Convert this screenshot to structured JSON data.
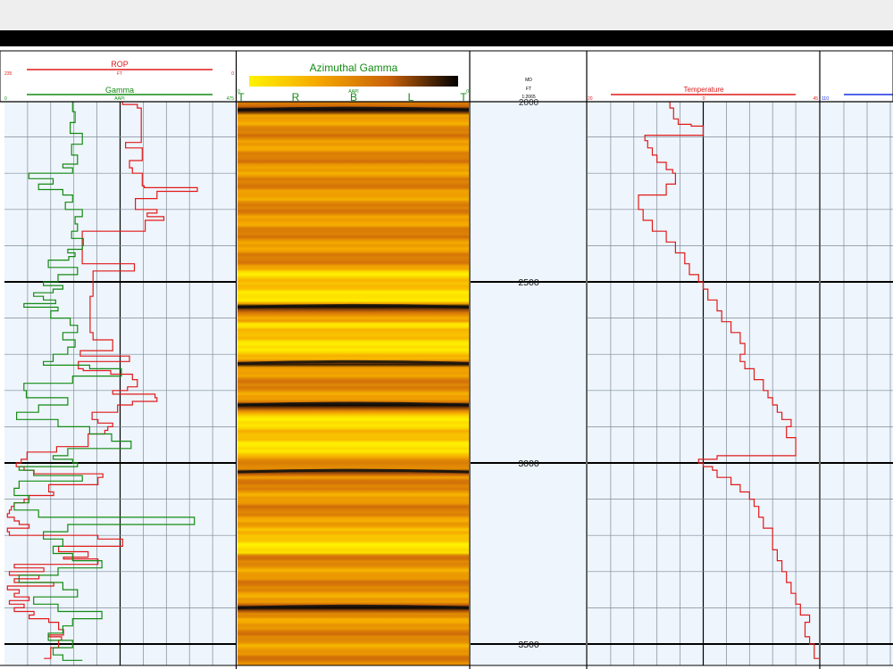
{
  "window": {
    "title": ""
  },
  "tracks": {
    "track1": {
      "rop": {
        "label": "ROP",
        "unit": "FT",
        "scale_left": "235",
        "scale_right": "0",
        "color": "#e01a1a"
      },
      "gamma": {
        "label": "Gamma",
        "unit": "AAPI",
        "scale_left": "0",
        "scale_right": "475",
        "color": "#138a13"
      }
    },
    "image": {
      "title": "Azimuthal Gamma",
      "unit": "AAPI",
      "scale_left": "0",
      "scale_right": "0",
      "orientation_labels": [
        "T",
        "R",
        "B",
        "L",
        "T"
      ],
      "title_color": "#138a13",
      "colormap": [
        "#fff200",
        "#f5a800",
        "#c8620a",
        "#000000"
      ]
    },
    "depth": {
      "label": "MD",
      "unit": "FT",
      "scale": "1:2065",
      "top_partial": "2000",
      "depth_labels": [
        "2500",
        "3000",
        "3500"
      ]
    },
    "temperature": {
      "label": "Temperature",
      "scale_left": "20",
      "scale_right": "45",
      "scale_mid": "0",
      "color": "#e01a1a"
    },
    "track5": {
      "scale_left": "110",
      "color": "#1a2fe0"
    }
  },
  "chart_data": {
    "type": "line",
    "title": "",
    "ylabel": "MD",
    "y_unit": "FT",
    "ylim": [
      1995,
      3565
    ],
    "series": [
      {
        "name": "ROP",
        "track": "track1",
        "xlim": [
          235,
          0
        ],
        "depth": [
          2000,
          2010,
          2020,
          2090,
          2115,
          2130,
          2150,
          2165,
          2185,
          2200,
          2225,
          2235,
          2240,
          2250,
          2265,
          2270,
          2290,
          2300,
          2310,
          2320,
          2330,
          2360,
          2450,
          2470,
          2540,
          2640,
          2660,
          2690,
          2705,
          2720,
          2740,
          2745,
          2755,
          2770,
          2790,
          2800,
          2810,
          2820,
          2830,
          2840,
          2860,
          2880,
          2890,
          2900,
          2910,
          2920,
          2940,
          2955,
          2970,
          2980,
          2990,
          3000,
          3010,
          3020,
          3030,
          3040,
          3060,
          3080,
          3090,
          3100,
          3110,
          3120,
          3130,
          3140,
          3150,
          3160,
          3170,
          3180,
          3190,
          3200,
          3210,
          3230,
          3245,
          3260,
          3265,
          3280,
          3290,
          3300,
          3310,
          3320,
          3330,
          3340,
          3350,
          3360,
          3370,
          3380,
          3390,
          3400,
          3410,
          3420,
          3430,
          3440,
          3460,
          3475,
          3480,
          3490,
          3510,
          3540
        ],
        "values": [
          115,
          100,
          96,
          96,
          112,
          95,
          95,
          108,
          105,
          95,
          95,
          93,
          39,
          80,
          80,
          102,
          102,
          80,
          90,
          73,
          92,
          156,
          103,
          145,
          148,
          145,
          125,
          158,
          108,
          160,
          155,
          127,
          105,
          100,
          110,
          125,
          82,
          80,
          105,
          120,
          146,
          140,
          125,
          130,
          133,
          150,
          150,
          182,
          212,
          212,
          218,
          223,
          215,
          205,
          135,
          140,
          190,
          185,
          210,
          215,
          225,
          228,
          230,
          232,
          225,
          220,
          210,
          232,
          230,
          140,
          115,
          180,
          150,
          175,
          140,
          225,
          195,
          230,
          200,
          225,
          185,
          232,
          220,
          225,
          210,
          230,
          215,
          225,
          205,
          210,
          190,
          180,
          175,
          190,
          177,
          180,
          188,
          195
        ]
      },
      {
        "name": "Gamma",
        "track": "track1",
        "xlim": [
          0,
          475
        ],
        "depth": [
          2000,
          2030,
          2060,
          2090,
          2120,
          2150,
          2175,
          2185,
          2200,
          2215,
          2230,
          2245,
          2260,
          2280,
          2300,
          2320,
          2340,
          2360,
          2380,
          2400,
          2410,
          2420,
          2430,
          2440,
          2460,
          2480,
          2500,
          2510,
          2520,
          2530,
          2540,
          2550,
          2560,
          2570,
          2580,
          2600,
          2620,
          2640,
          2660,
          2680,
          2700,
          2720,
          2730,
          2740,
          2760,
          2780,
          2800,
          2820,
          2840,
          2860,
          2880,
          2900,
          2920,
          2940,
          2960,
          2980,
          2990,
          3000,
          3010,
          3020,
          3035,
          3050,
          3070,
          3090,
          3110,
          3130,
          3150,
          3170,
          3190,
          3210,
          3230,
          3250,
          3270,
          3290,
          3310,
          3330,
          3350,
          3370,
          3390,
          3410,
          3430,
          3450,
          3470,
          3490,
          3510,
          3530,
          3545
        ],
        "values": [
          140,
          145,
          135,
          160,
          138,
          150,
          120,
          140,
          50,
          100,
          70,
          120,
          140,
          125,
          160,
          145,
          150,
          138,
          162,
          160,
          130,
          145,
          132,
          90,
          150,
          110,
          80,
          120,
          100,
          60,
          80,
          105,
          40,
          110,
          95,
          135,
          150,
          120,
          145,
          130,
          100,
          80,
          175,
          240,
          140,
          40,
          45,
          130,
          70,
          25,
          110,
          175,
          220,
          260,
          130,
          100,
          140,
          150,
          30,
          60,
          160,
          30,
          20,
          50,
          20,
          70,
          390,
          130,
          80,
          120,
          100,
          140,
          200,
          110,
          30,
          120,
          150,
          60,
          110,
          200,
          140,
          120,
          90,
          140,
          100,
          120,
          160
        ]
      },
      {
        "name": "Temperature",
        "track": "temperature",
        "xlim": [
          20,
          45
        ],
        "depth": [
          2000,
          2020,
          2050,
          2065,
          2070,
          2080,
          2095,
          2110,
          2130,
          2150,
          2170,
          2190,
          2200,
          2215,
          2230,
          2260,
          2280,
          2300,
          2330,
          2360,
          2390,
          2420,
          2450,
          2480,
          2500,
          2520,
          2550,
          2580,
          2610,
          2640,
          2670,
          2700,
          2720,
          2740,
          2770,
          2800,
          2820,
          2840,
          2860,
          2870,
          2880,
          2900,
          2930,
          2950,
          2970,
          2980,
          2990,
          3000,
          3010,
          3020,
          3040,
          3060,
          3080,
          3100,
          3120,
          3150,
          3180,
          3210,
          3240,
          3270,
          3300,
          3330,
          3360,
          3390,
          3420,
          3440,
          3460,
          3480,
          3500,
          3520,
          3540
        ],
        "values": [
          28.9,
          29.3,
          29.8,
          31.2,
          32.5,
          32.5,
          26.2,
          26.5,
          27,
          27.5,
          28.5,
          29.2,
          29.5,
          29.5,
          28.5,
          25.5,
          25.5,
          26,
          27,
          28.5,
          29.5,
          30.5,
          31,
          32,
          32.5,
          33,
          34,
          34.5,
          35.5,
          36.5,
          37,
          36.5,
          37,
          38,
          39,
          39.5,
          40,
          40.5,
          41,
          41,
          42,
          41.5,
          42.5,
          42.5,
          42.5,
          34,
          32,
          32.5,
          33.5,
          34,
          35.5,
          36.5,
          37.5,
          38,
          38.5,
          39,
          40,
          40,
          40.5,
          41,
          41.5,
          42,
          42.5,
          43,
          44,
          43.5,
          43.5,
          44,
          44.5,
          44.5,
          45
        ]
      }
    ],
    "image_log": {
      "name": "Azimuthal Gamma",
      "dark_bed_depths": [
        2025,
        2570,
        2725,
        2840,
        3025,
        3400
      ],
      "bright_bed_intervals": [
        [
          2470,
          2560
        ],
        [
          2615,
          2720
        ],
        [
          2860,
          2990
        ],
        [
          3180,
          3250
        ]
      ]
    },
    "grid": true
  }
}
